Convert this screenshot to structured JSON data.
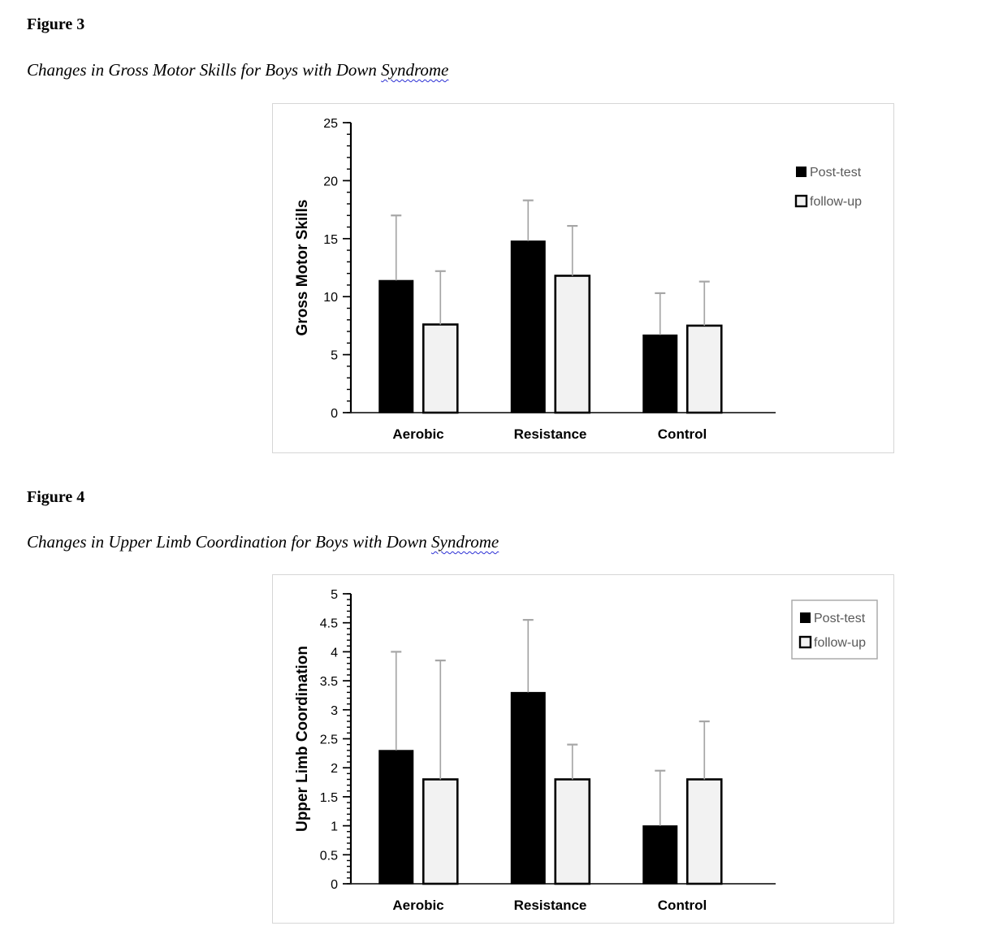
{
  "document": {
    "spellcheck_underline_color": "#2b2fd4",
    "figure3": {
      "heading": "Figure 3",
      "caption_text": "Changes in Gross Motor Skills for Boys with Down ",
      "caption_flagged_word": "Syndrome"
    },
    "figure4": {
      "heading": "Figure 4",
      "caption_text": "Changes in Upper Limb Coordination for Boys with Down ",
      "caption_flagged_word": "Syndrome"
    }
  },
  "chart_data": [
    {
      "type": "bar",
      "title": "",
      "categories": [
        "Aerobic",
        "Resistance",
        "Control"
      ],
      "series": [
        {
          "name": "Post-test",
          "values": [
            11.4,
            14.8,
            6.7
          ],
          "errors_up": [
            5.6,
            3.5,
            3.6
          ],
          "fill": "#000000",
          "border": "#000000"
        },
        {
          "name": "follow-up",
          "values": [
            7.6,
            11.8,
            7.5
          ],
          "errors_up": [
            4.6,
            4.3,
            3.8
          ],
          "fill": "#f2f2f2",
          "border": "#000000"
        }
      ],
      "xlabel": "",
      "ylabel": "Gross Motor Skills",
      "ylim": [
        0,
        25
      ],
      "ytick_major": 5,
      "ytick_minor": 1,
      "grid": false,
      "legend": {
        "position": "top-right",
        "boxed": false,
        "entries": [
          "Post-test",
          "follow-up"
        ]
      },
      "error_bar_color": "#a6a6a6",
      "legend_text_color": "#595959",
      "axis_color": "#000000"
    },
    {
      "type": "bar",
      "title": "",
      "categories": [
        "Aerobic",
        "Resistance",
        "Control"
      ],
      "series": [
        {
          "name": "Post-test",
          "values": [
            2.3,
            3.3,
            1.0
          ],
          "errors_up": [
            1.7,
            1.25,
            0.95
          ],
          "fill": "#000000",
          "border": "#000000"
        },
        {
          "name": "follow-up",
          "values": [
            1.8,
            1.8,
            1.8
          ],
          "errors_up": [
            2.05,
            0.6,
            1.0
          ],
          "fill": "#f2f2f2",
          "border": "#000000"
        }
      ],
      "xlabel": "",
      "ylabel": "Upper Limb Coordination",
      "ylim": [
        0,
        5
      ],
      "ytick_major": 0.5,
      "ytick_minor": 0.1,
      "grid": false,
      "legend": {
        "position": "top-right",
        "boxed": true,
        "entries": [
          "Post-test",
          "follow-up"
        ]
      },
      "error_bar_color": "#a6a6a6",
      "legend_text_color": "#595959",
      "axis_color": "#000000"
    }
  ]
}
